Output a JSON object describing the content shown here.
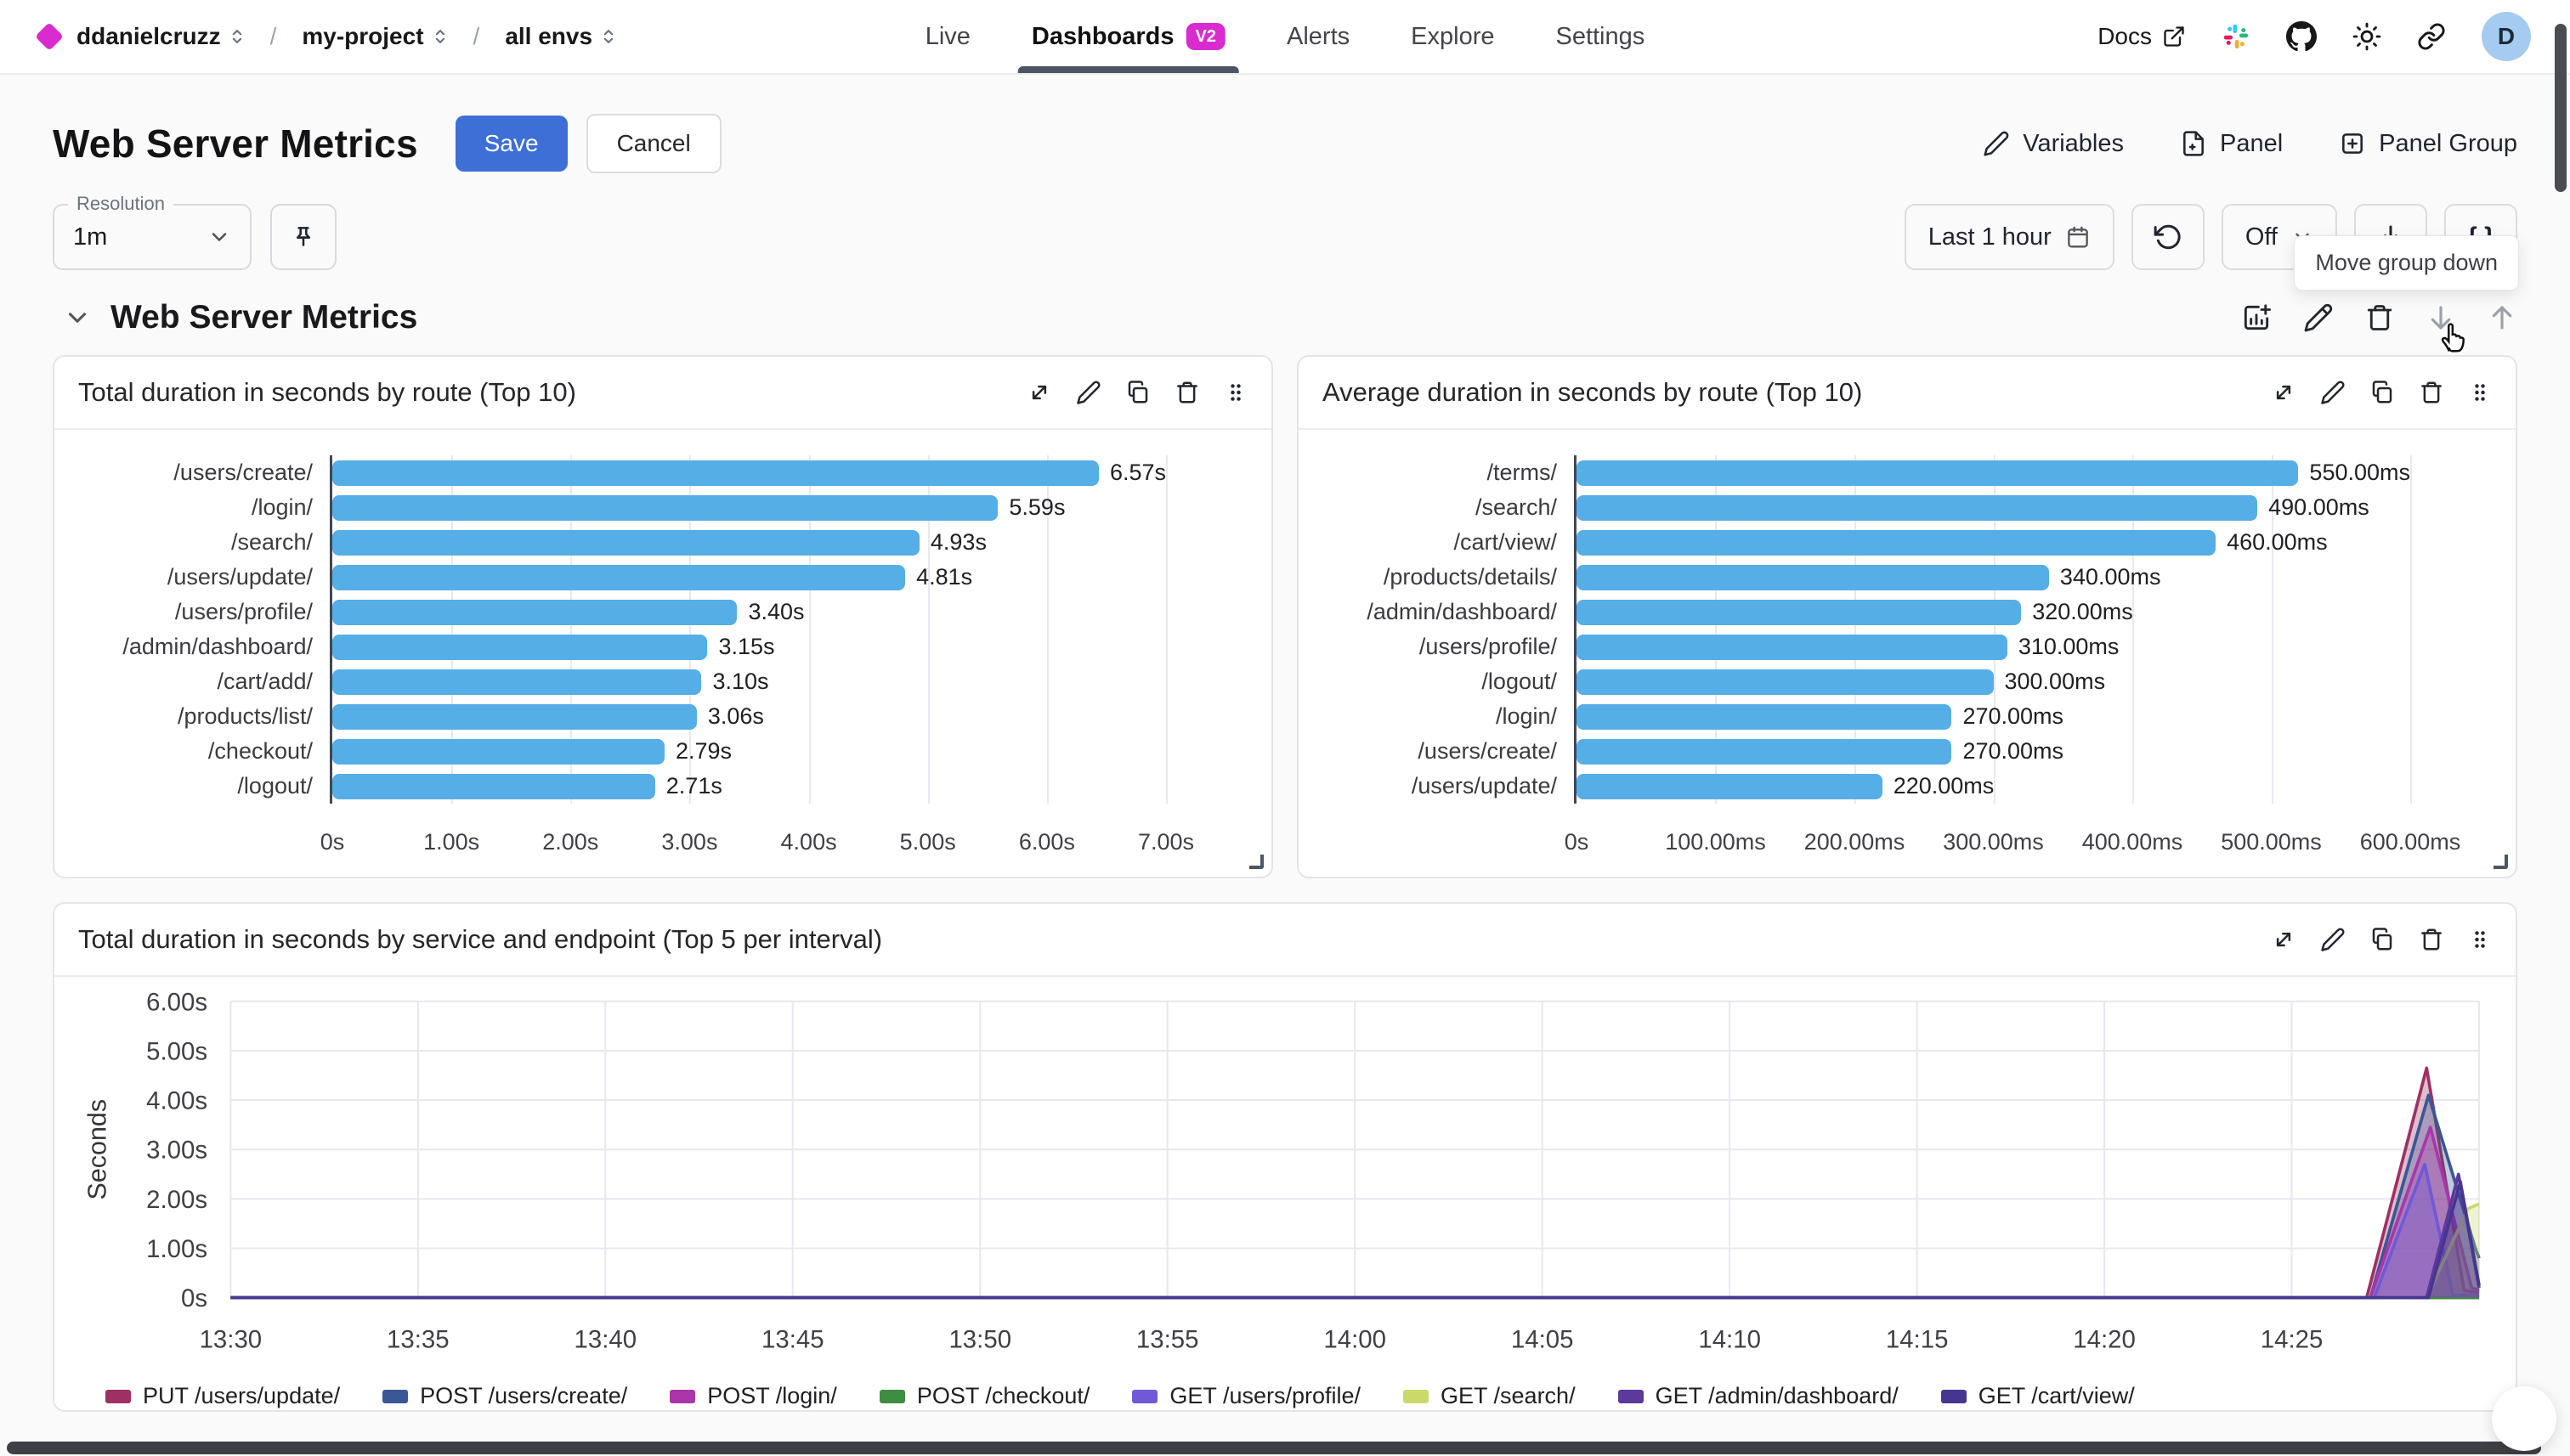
{
  "brand": {
    "org": "ddanielcruzz",
    "project": "my-project",
    "env": "all envs"
  },
  "nav": {
    "tabs": [
      {
        "label": "Live"
      },
      {
        "label": "Dashboards",
        "badge": "V2",
        "active": true
      },
      {
        "label": "Alerts"
      },
      {
        "label": "Explore"
      },
      {
        "label": "Settings"
      }
    ]
  },
  "topright": {
    "docs_label": "Docs",
    "avatar_initial": "D"
  },
  "header": {
    "title": "Web Server Metrics",
    "save_label": "Save",
    "cancel_label": "Cancel",
    "actions": [
      {
        "label": "Variables"
      },
      {
        "label": "Panel"
      },
      {
        "label": "Panel Group"
      }
    ]
  },
  "toolbar": {
    "resolution_label": "Resolution",
    "resolution_value": "1m",
    "time_range": "Last 1 hour",
    "auto_refresh": "Off",
    "braces_label": "{ }",
    "tooltip": "Move group down"
  },
  "group": {
    "title": "Web Server Metrics"
  },
  "panels": [
    {
      "title": "Total duration in seconds by route (Top 10)"
    },
    {
      "title": "Average duration in seconds by route (Top 10)"
    },
    {
      "title": "Total duration in seconds by service and endpoint (Top 5 per interval)"
    }
  ],
  "colors": {
    "accent_magenta": "#d92bd0",
    "save_blue": "#3d6fd6",
    "bar_blue": "#55aee6"
  },
  "chart_data": [
    {
      "type": "bar",
      "orientation": "horizontal",
      "title": "Total duration in seconds by route (Top 10)",
      "categories": [
        "/users/create/",
        "/login/",
        "/search/",
        "/users/update/",
        "/users/profile/",
        "/admin/dashboard/",
        "/cart/add/",
        "/products/list/",
        "/checkout/",
        "/logout/"
      ],
      "values": [
        6.57,
        5.59,
        4.93,
        4.81,
        3.4,
        3.15,
        3.1,
        3.06,
        2.79,
        2.71
      ],
      "value_labels": [
        "6.57s",
        "5.59s",
        "4.93s",
        "4.81s",
        "3.40s",
        "3.15s",
        "3.10s",
        "3.06s",
        "2.79s",
        "2.71s"
      ],
      "axis_max": 7,
      "ticks": [
        {
          "label": "0s",
          "value": 0
        },
        {
          "label": "1.00s",
          "value": 1
        },
        {
          "label": "2.00s",
          "value": 2
        },
        {
          "label": "3.00s",
          "value": 3
        },
        {
          "label": "4.00s",
          "value": 4
        },
        {
          "label": "5.00s",
          "value": 5
        },
        {
          "label": "6.00s",
          "value": 6
        },
        {
          "label": "7.00s",
          "value": 7
        }
      ]
    },
    {
      "type": "bar",
      "orientation": "horizontal",
      "title": "Average duration in seconds by route (Top 10)",
      "categories": [
        "/terms/",
        "/search/",
        "/cart/view/",
        "/products/details/",
        "/admin/dashboard/",
        "/users/profile/",
        "/logout/",
        "/login/",
        "/users/create/",
        "/users/update/"
      ],
      "values": [
        550,
        490,
        460,
        340,
        320,
        310,
        300,
        270,
        270,
        220
      ],
      "value_labels": [
        "550.00ms",
        "490.00ms",
        "460.00ms",
        "340.00ms",
        "320.00ms",
        "310.00ms",
        "300.00ms",
        "270.00ms",
        "270.00ms",
        "220.00ms"
      ],
      "axis_max": 600,
      "ticks": [
        {
          "label": "0s",
          "value": 0
        },
        {
          "label": "100.00ms",
          "value": 100
        },
        {
          "label": "200.00ms",
          "value": 200
        },
        {
          "label": "300.00ms",
          "value": 300
        },
        {
          "label": "400.00ms",
          "value": 400
        },
        {
          "label": "500.00ms",
          "value": 500
        },
        {
          "label": "600.00ms",
          "value": 600
        }
      ]
    },
    {
      "type": "area",
      "title": "Total duration in seconds by service and endpoint (Top 5 per interval)",
      "ylabel": "Seconds",
      "ylim": [
        0,
        6
      ],
      "x_domain_minutes": [
        0,
        60
      ],
      "yticks": [
        {
          "label": "6.00s",
          "value": 6
        },
        {
          "label": "5.00s",
          "value": 5
        },
        {
          "label": "4.00s",
          "value": 4
        },
        {
          "label": "3.00s",
          "value": 3
        },
        {
          "label": "2.00s",
          "value": 2
        },
        {
          "label": "1.00s",
          "value": 1
        },
        {
          "label": "0s",
          "value": 0
        }
      ],
      "xticks": [
        {
          "label": "13:30",
          "minute": 0
        },
        {
          "label": "13:35",
          "minute": 5
        },
        {
          "label": "13:40",
          "minute": 10
        },
        {
          "label": "13:45",
          "minute": 15
        },
        {
          "label": "13:50",
          "minute": 20
        },
        {
          "label": "13:55",
          "minute": 25
        },
        {
          "label": "14:00",
          "minute": 30
        },
        {
          "label": "14:05",
          "minute": 35
        },
        {
          "label": "14:10",
          "minute": 40
        },
        {
          "label": "14:15",
          "minute": 45
        },
        {
          "label": "14:20",
          "minute": 50
        },
        {
          "label": "14:25",
          "minute": 55
        }
      ],
      "series": [
        {
          "name": "PUT /users/update/",
          "color": "#9d3164",
          "points": [
            [
              0,
              0
            ],
            [
              57.0,
              0
            ],
            [
              58.6,
              4.65
            ],
            [
              59.6,
              0.15
            ],
            [
              60,
              0.1
            ]
          ]
        },
        {
          "name": "POST /users/create/",
          "color": "#3a5796",
          "points": [
            [
              0,
              0
            ],
            [
              57.1,
              0
            ],
            [
              58.65,
              4.1
            ],
            [
              59.9,
              1.0
            ],
            [
              60,
              0.8
            ]
          ]
        },
        {
          "name": "POST /login/",
          "color": "#aa36aa",
          "points": [
            [
              0,
              0
            ],
            [
              57.1,
              0
            ],
            [
              58.7,
              3.45
            ],
            [
              59.8,
              0.2
            ],
            [
              60,
              0.15
            ]
          ]
        },
        {
          "name": "POST /checkout/",
          "color": "#3e8e41",
          "points": [
            [
              0,
              0
            ],
            [
              60,
              0
            ]
          ]
        },
        {
          "name": "GET /users/profile/",
          "color": "#7058d9",
          "points": [
            [
              0,
              0
            ],
            [
              57.2,
              0
            ],
            [
              58.55,
              2.7
            ],
            [
              59.3,
              0.05
            ],
            [
              60,
              0.05
            ]
          ]
        },
        {
          "name": "GET /search/",
          "color": "#cbd96b",
          "points": [
            [
              0,
              0
            ],
            [
              58.6,
              0
            ],
            [
              59.7,
              1.8
            ],
            [
              60,
              1.9
            ]
          ]
        },
        {
          "name": "GET /admin/dashboard/",
          "color": "#5b3a9c",
          "points": [
            [
              0,
              0
            ],
            [
              58.6,
              0
            ],
            [
              59.45,
              2.5
            ],
            [
              60,
              0.2
            ]
          ]
        },
        {
          "name": "GET /cart/view/",
          "color": "#46368f",
          "points": [
            [
              0,
              0
            ],
            [
              58.65,
              0
            ],
            [
              59.5,
              2.35
            ],
            [
              60,
              0.25
            ]
          ]
        }
      ]
    }
  ]
}
